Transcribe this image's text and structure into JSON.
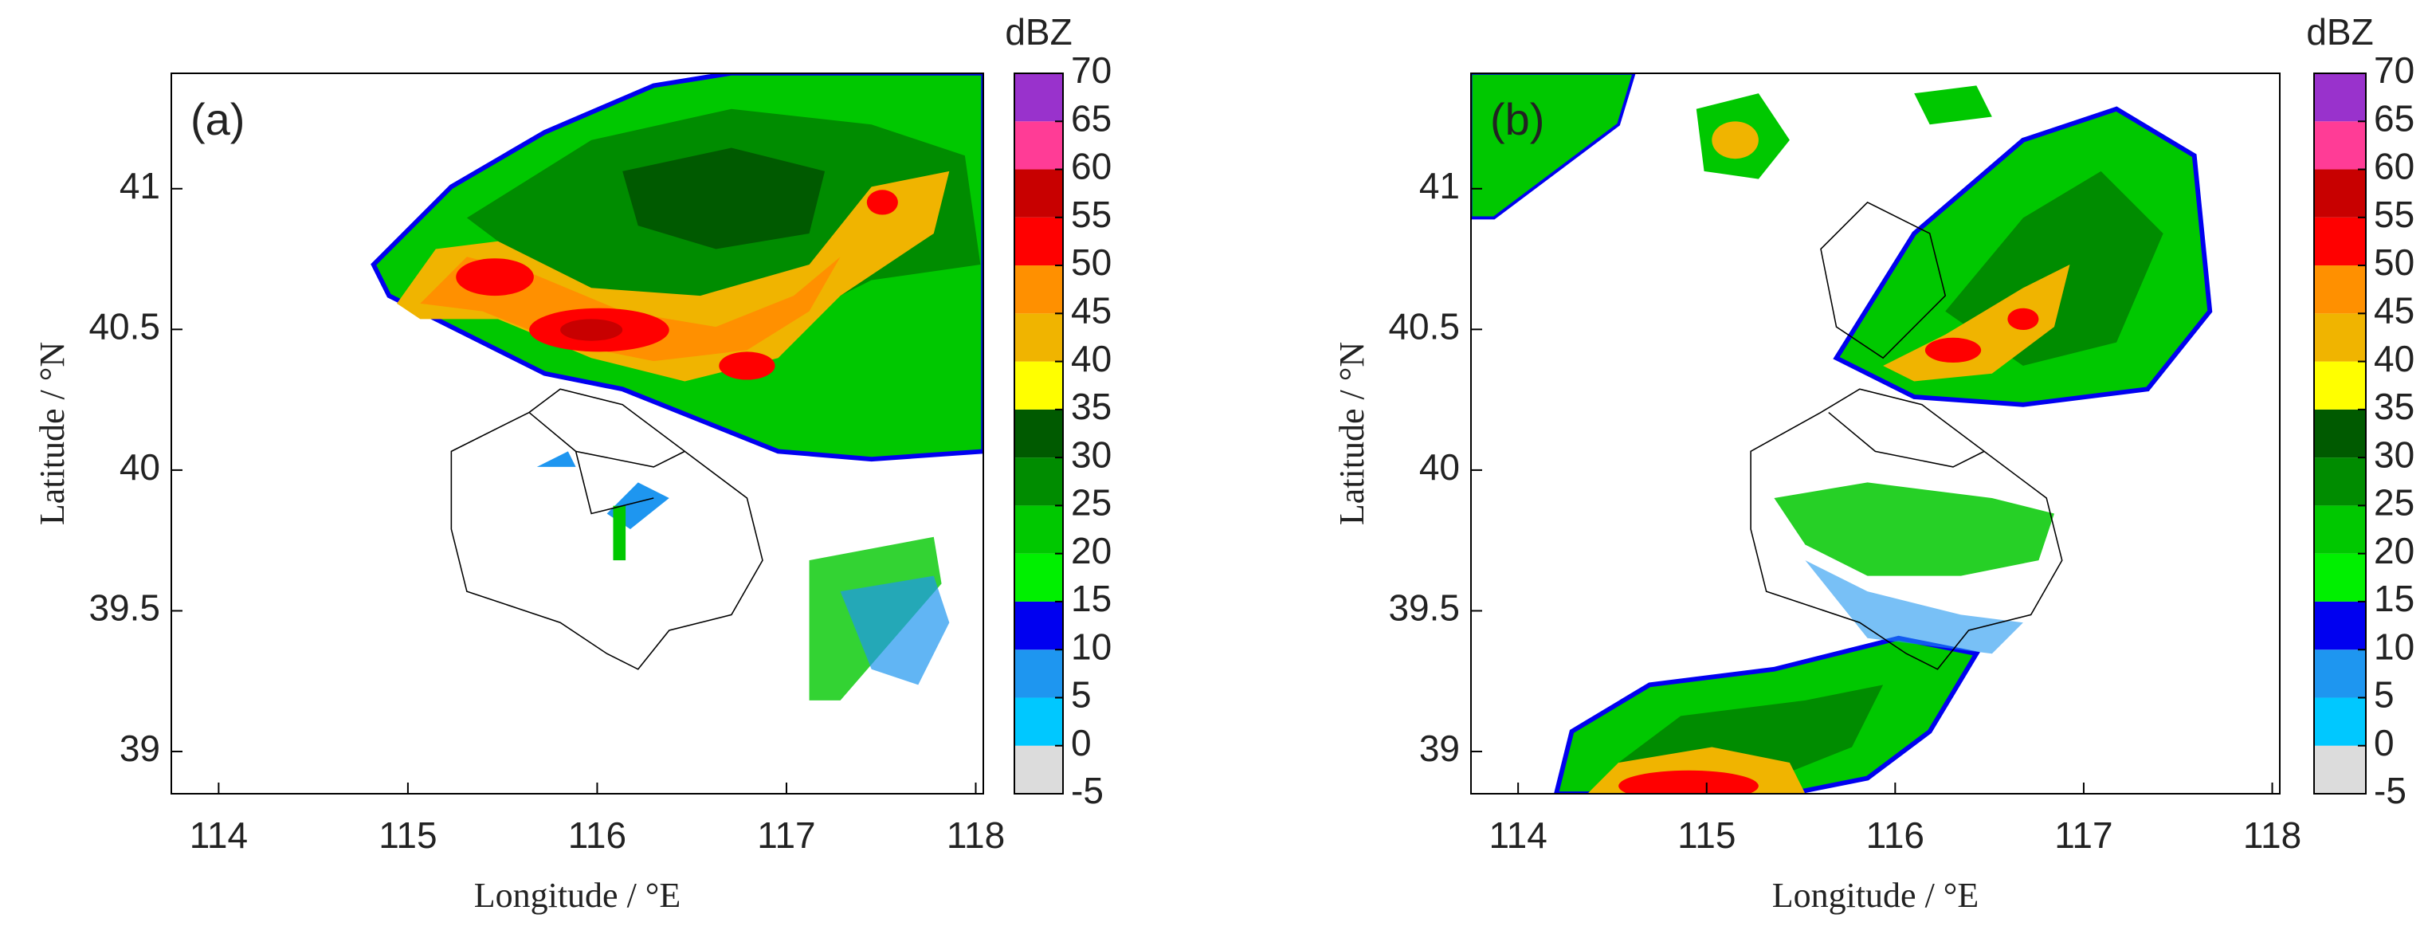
{
  "chart_data": [
    {
      "type": "map",
      "panel_label": "(a)",
      "xlabel": "Longitude / °E",
      "ylabel": "Latitude / °N",
      "xlim": [
        113.75,
        118.04
      ],
      "ylim": [
        38.85,
        41.41
      ],
      "xticks": [
        114,
        115,
        116,
        117,
        118
      ],
      "yticks": [
        39,
        39.5,
        40,
        40.5,
        41
      ],
      "colorbar": {
        "label": "dBZ",
        "ticks": [
          -5,
          0,
          5,
          10,
          15,
          20,
          25,
          30,
          35,
          40,
          45,
          50,
          55,
          60,
          65,
          70
        ],
        "colors": [
          "#dcdcdc",
          "#00c8ff",
          "#1e96f0",
          "#0000f0",
          "#00f000",
          "#00c800",
          "#008c00",
          "#005a00",
          "#ffff00",
          "#f0b400",
          "#ff9000",
          "#ff0000",
          "#c80000",
          "#ff3c96",
          "#9932cc"
        ]
      }
    },
    {
      "type": "map",
      "panel_label": "(b)",
      "xlabel": "Longitude / °E",
      "ylabel": "Latitude / °N",
      "xlim": [
        113.75,
        118.04
      ],
      "ylim": [
        38.85,
        41.41
      ],
      "xticks": [
        114,
        115,
        116,
        117,
        118
      ],
      "yticks": [
        39,
        39.5,
        40,
        40.5,
        41
      ],
      "colorbar": {
        "label": "dBZ",
        "ticks": [
          -5,
          0,
          5,
          10,
          15,
          20,
          25,
          30,
          35,
          40,
          45,
          50,
          55,
          60,
          65,
          70
        ],
        "colors": [
          "#dcdcdc",
          "#00c8ff",
          "#1e96f0",
          "#0000f0",
          "#00f000",
          "#00c800",
          "#008c00",
          "#005a00",
          "#ffff00",
          "#f0b400",
          "#ff9000",
          "#ff0000",
          "#c80000",
          "#ff3c96",
          "#9932cc"
        ]
      }
    }
  ]
}
